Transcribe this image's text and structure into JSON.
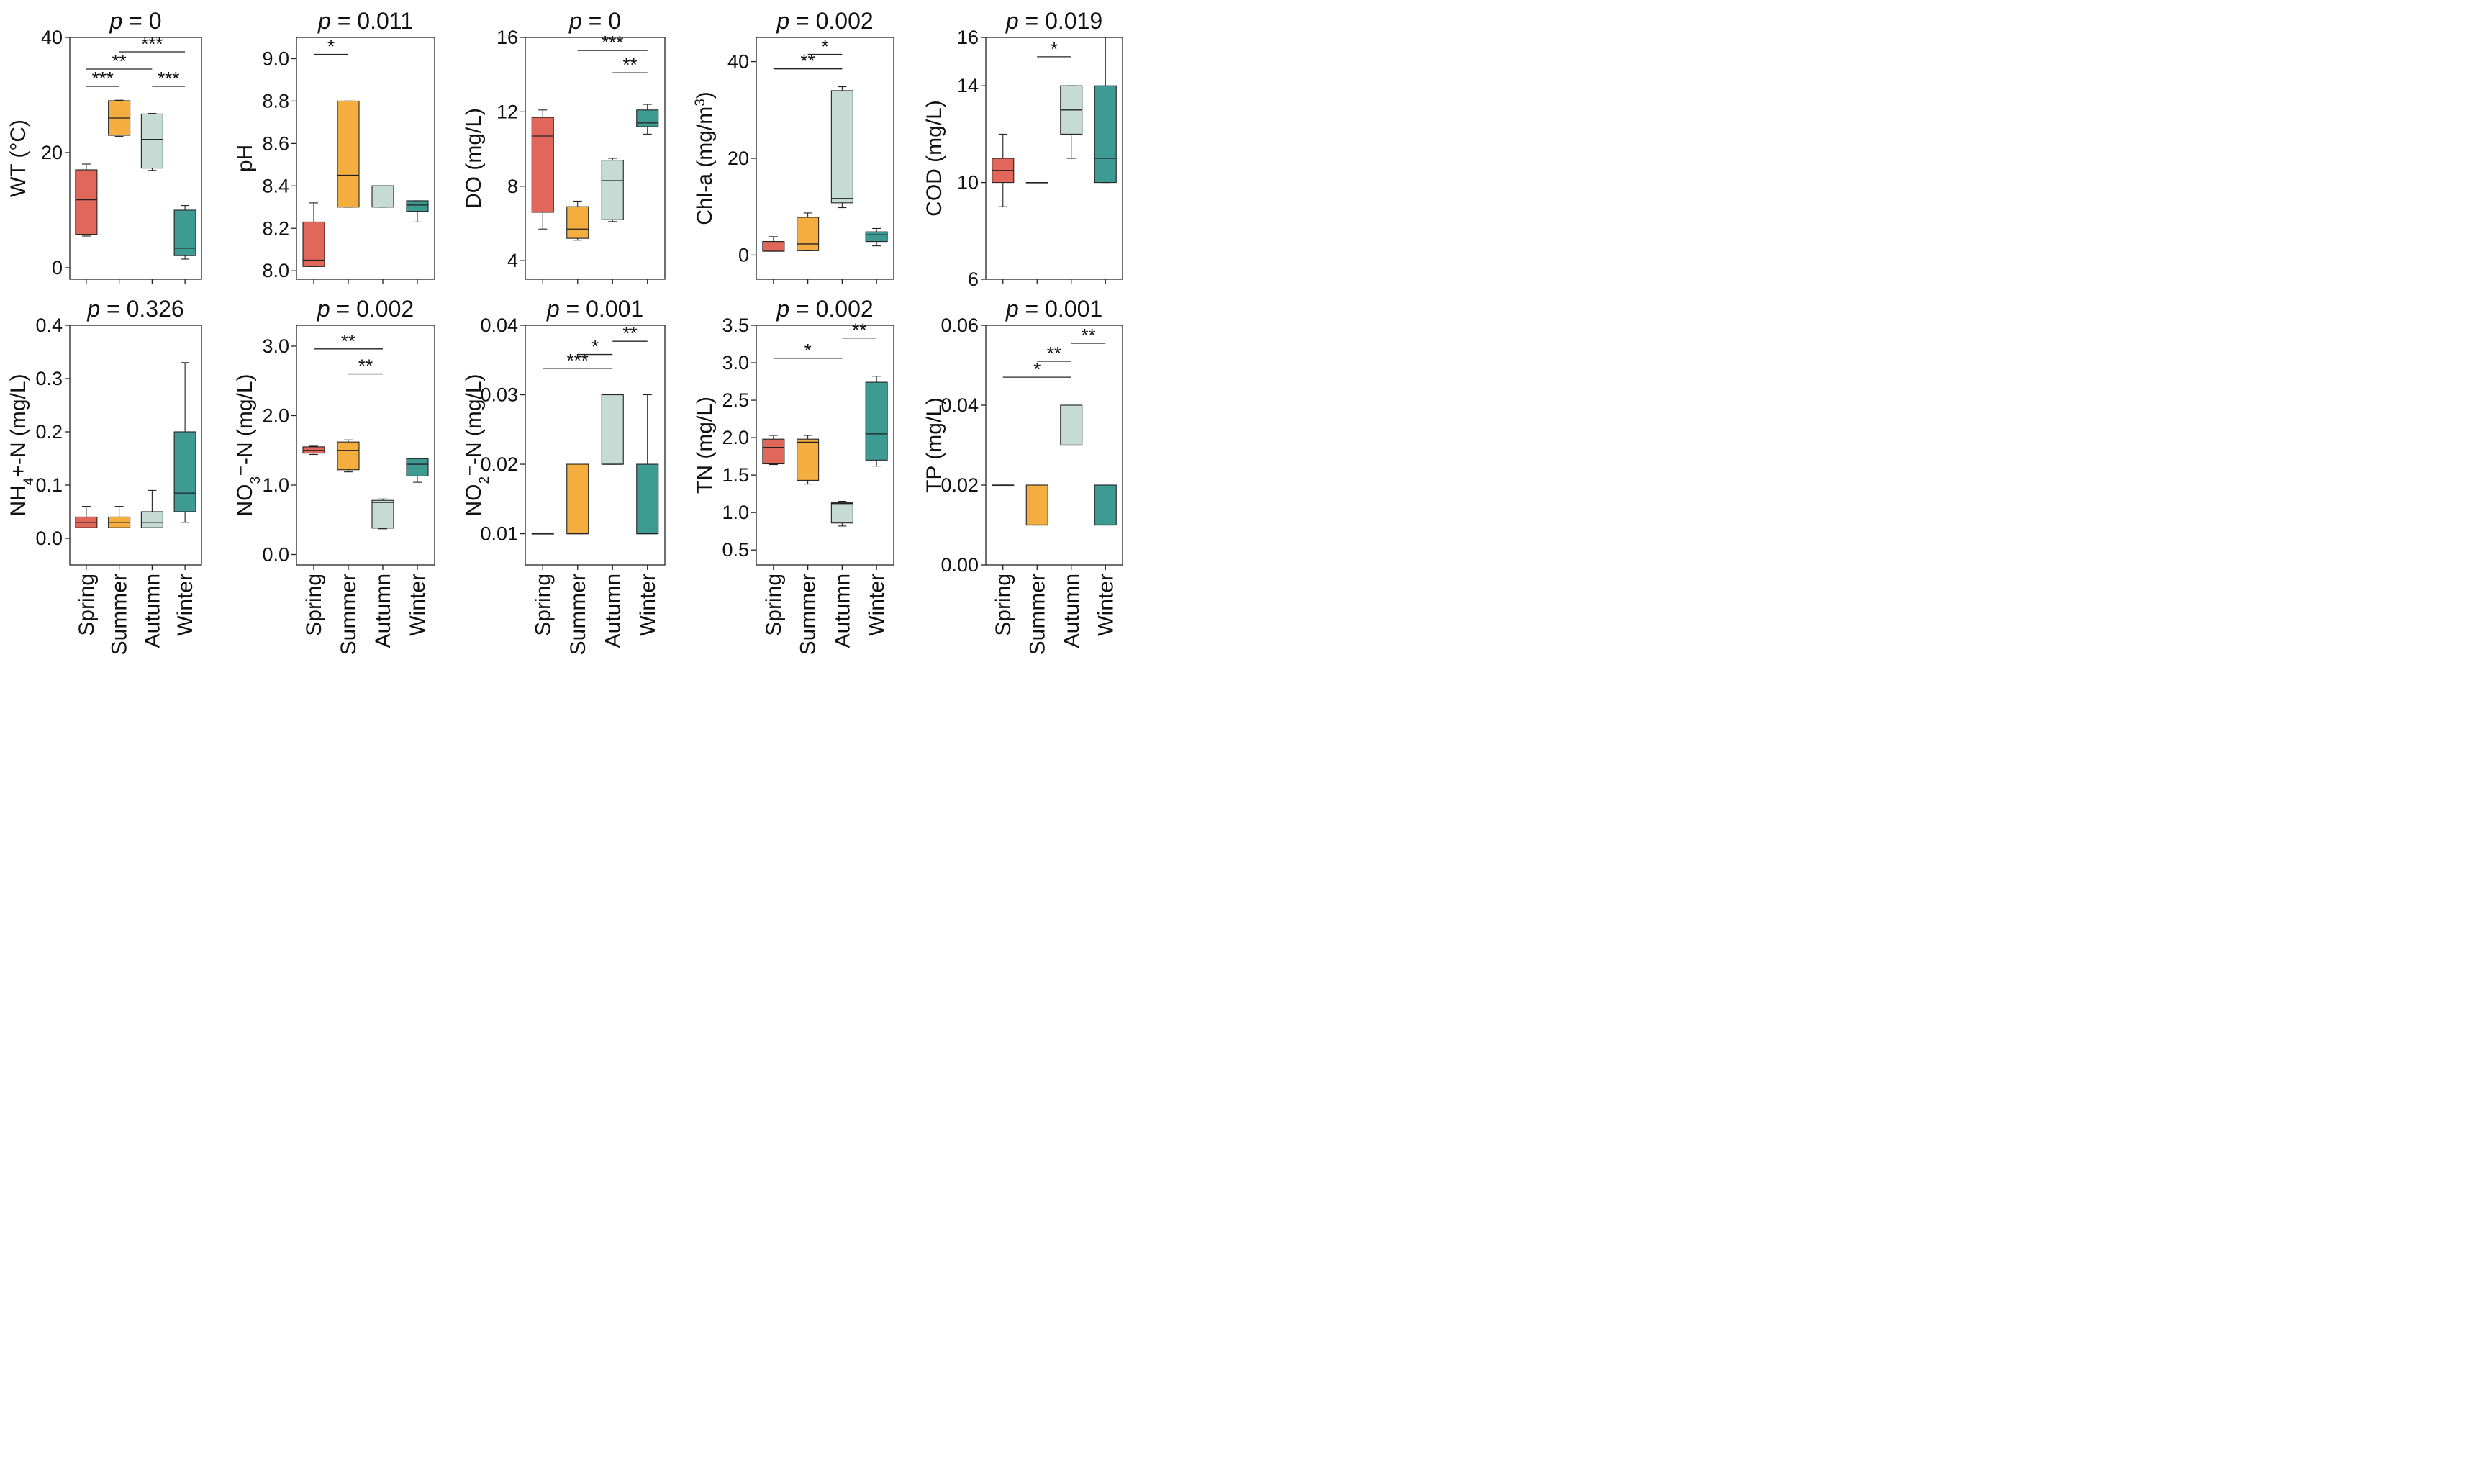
{
  "colors": {
    "Spring": "#E0675A",
    "Summer": "#F3AE3F",
    "Autumn": "#C5DBD4",
    "Winter": "#3E9B94"
  },
  "chart_data": [
    {
      "type": "box",
      "title_prefix": "p",
      "title_value": " = 0",
      "ylabel": [
        {
          "t": "WT ("
        },
        {
          "t": "°C"
        },
        {
          "t": ")"
        }
      ],
      "ylim": [
        -2,
        40
      ],
      "ticks": [
        0,
        20,
        40
      ],
      "tick_labels": [
        "0",
        "20",
        "40"
      ],
      "categories": [
        "Spring",
        "Summer",
        "Autumn",
        "Winter"
      ],
      "show_categories": false,
      "boxes": [
        {
          "cat": "Spring",
          "min": 5.5,
          "q1": 5.8,
          "median": 11.8,
          "q3": 17.0,
          "max": 18.0
        },
        {
          "cat": "Summer",
          "min": 22.8,
          "q1": 23.0,
          "median": 26.0,
          "q3": 29.0,
          "max": 29.1
        },
        {
          "cat": "Autumn",
          "min": 16.9,
          "q1": 17.3,
          "median": 22.3,
          "q3": 26.7,
          "max": 26.8
        },
        {
          "cat": "Winter",
          "min": 1.5,
          "q1": 2.1,
          "median": 3.4,
          "q3": 10.0,
          "max": 10.8
        }
      ],
      "sig": [
        {
          "from": 0,
          "to": 1,
          "label": "***",
          "y": 31.5
        },
        {
          "from": 0,
          "to": 2,
          "label": "**",
          "y": 34.5
        },
        {
          "from": 1,
          "to": 3,
          "label": "***",
          "y": 37.5
        },
        {
          "from": 2,
          "to": 3,
          "label": "***",
          "y": 31.5
        }
      ]
    },
    {
      "type": "box",
      "title_prefix": "p",
      "title_value": " = 0.011",
      "ylabel": [
        {
          "t": "pH"
        }
      ],
      "ylim": [
        7.96,
        9.1
      ],
      "ticks": [
        8.0,
        8.2,
        8.4,
        8.6,
        8.8,
        9.0
      ],
      "tick_labels": [
        "8.0",
        "8.2",
        "8.4",
        "8.6",
        "8.8",
        "9.0"
      ],
      "categories": [
        "Spring",
        "Summer",
        "Autumn",
        "Winter"
      ],
      "show_categories": false,
      "boxes": [
        {
          "cat": "Spring",
          "min": 8.02,
          "q1": 8.02,
          "median": 8.05,
          "q3": 8.23,
          "max": 8.32
        },
        {
          "cat": "Summer",
          "min": 8.3,
          "q1": 8.3,
          "median": 8.45,
          "q3": 8.8,
          "max": 8.8
        },
        {
          "cat": "Autumn",
          "min": 8.3,
          "q1": 8.3,
          "median": 8.4,
          "q3": 8.4,
          "max": 8.4
        },
        {
          "cat": "Winter",
          "min": 8.23,
          "q1": 8.28,
          "median": 8.31,
          "q3": 8.33,
          "max": 8.33
        }
      ],
      "sig": [
        {
          "from": 0,
          "to": 1,
          "label": "*",
          "y": 9.02
        }
      ]
    },
    {
      "type": "box",
      "title_prefix": "p",
      "title_value": " = 0",
      "ylabel": [
        {
          "t": "DO (mg/L)"
        }
      ],
      "ylim": [
        3.0,
        16
      ],
      "ticks": [
        4,
        8,
        12,
        16
      ],
      "tick_labels": [
        "4",
        "8",
        "12",
        "16"
      ],
      "categories": [
        "Spring",
        "Summer",
        "Autumn",
        "Winter"
      ],
      "show_categories": false,
      "boxes": [
        {
          "cat": "Spring",
          "min": 5.7,
          "q1": 6.6,
          "median": 10.7,
          "q3": 11.7,
          "max": 12.1
        },
        {
          "cat": "Summer",
          "min": 5.1,
          "q1": 5.2,
          "median": 5.7,
          "q3": 6.9,
          "max": 7.2
        },
        {
          "cat": "Autumn",
          "min": 6.1,
          "q1": 6.2,
          "median": 8.3,
          "q3": 9.4,
          "max": 9.5
        },
        {
          "cat": "Winter",
          "min": 10.8,
          "q1": 11.2,
          "median": 11.4,
          "q3": 12.1,
          "max": 12.4
        }
      ],
      "sig": [
        {
          "from": 1,
          "to": 3,
          "label": "***",
          "y": 15.3
        },
        {
          "from": 2,
          "to": 3,
          "label": "**",
          "y": 14.1
        }
      ]
    },
    {
      "type": "box",
      "title_prefix": "p",
      "title_value": " = 0.002",
      "ylabel": [
        {
          "t": "Chl-a (mg/m"
        },
        {
          "t": "3",
          "sup": true
        },
        {
          "t": ")"
        }
      ],
      "ylim": [
        -5,
        45
      ],
      "ticks": [
        0,
        20,
        40
      ],
      "tick_labels": [
        "0",
        "20",
        "40"
      ],
      "categories": [
        "Spring",
        "Summer",
        "Autumn",
        "Winter"
      ],
      "show_categories": false,
      "boxes": [
        {
          "cat": "Spring",
          "min": 0.8,
          "q1": 0.8,
          "median": 0.8,
          "q3": 2.8,
          "max": 3.8
        },
        {
          "cat": "Summer",
          "min": 0.9,
          "q1": 0.9,
          "median": 2.3,
          "q3": 7.8,
          "max": 8.7
        },
        {
          "cat": "Autumn",
          "min": 9.8,
          "q1": 10.8,
          "median": 11.7,
          "q3": 34.0,
          "max": 34.8
        },
        {
          "cat": "Winter",
          "min": 1.9,
          "q1": 2.8,
          "median": 4.2,
          "q3": 4.8,
          "max": 5.5
        }
      ],
      "sig": [
        {
          "from": 0,
          "to": 2,
          "label": "**",
          "y": 38.5
        },
        {
          "from": 1,
          "to": 2,
          "label": "*",
          "y": 41.5
        }
      ]
    },
    {
      "type": "box",
      "title_prefix": "p",
      "title_value": " = 0.019",
      "ylabel": [
        {
          "t": "COD (mg/L)"
        }
      ],
      "ylim": [
        6,
        16
      ],
      "ticks": [
        6,
        10,
        14,
        16
      ],
      "tick_labels": [
        "6",
        "10",
        "14",
        "16"
      ],
      "categories": [
        "Spring",
        "Summer",
        "Autumn",
        "Winter"
      ],
      "show_categories": false,
      "boxes": [
        {
          "cat": "Spring",
          "min": 9.0,
          "q1": 10.0,
          "median": 10.5,
          "q3": 11.0,
          "max": 12.0
        },
        {
          "cat": "Summer",
          "min": 10.0,
          "q1": 10.0,
          "median": 10.0,
          "q3": 10.0,
          "max": 10.0
        },
        {
          "cat": "Autumn",
          "min": 11.0,
          "q1": 12.0,
          "median": 13.0,
          "q3": 14.0,
          "max": 14.0
        },
        {
          "cat": "Winter",
          "min": 10.0,
          "q1": 10.0,
          "median": 11.0,
          "q3": 14.0,
          "max": 16.0
        }
      ],
      "sig": [
        {
          "from": 1,
          "to": 2,
          "label": "*",
          "y": 15.2
        }
      ]
    },
    {
      "type": "box",
      "title_prefix": "p",
      "title_value": " = 0.326",
      "ylabel": [
        {
          "t": "NH"
        },
        {
          "t": "4",
          "sub": true
        },
        {
          "t": "+-N (mg/L)"
        }
      ],
      "ylim": [
        -0.05,
        0.4
      ],
      "ticks": [
        0.0,
        0.1,
        0.2,
        0.3,
        0.4
      ],
      "tick_labels": [
        "0.0",
        "0.1",
        "0.2",
        "0.3",
        "0.4"
      ],
      "categories": [
        "Spring",
        "Summer",
        "Autumn",
        "Winter"
      ],
      "show_categories": true,
      "boxes": [
        {
          "cat": "Spring",
          "min": 0.02,
          "q1": 0.02,
          "median": 0.03,
          "q3": 0.04,
          "max": 0.06
        },
        {
          "cat": "Summer",
          "min": 0.02,
          "q1": 0.02,
          "median": 0.03,
          "q3": 0.04,
          "max": 0.06
        },
        {
          "cat": "Autumn",
          "min": 0.02,
          "q1": 0.02,
          "median": 0.03,
          "q3": 0.05,
          "max": 0.09
        },
        {
          "cat": "Winter",
          "min": 0.03,
          "q1": 0.05,
          "median": 0.085,
          "q3": 0.2,
          "max": 0.33
        }
      ],
      "sig": []
    },
    {
      "type": "box",
      "title_prefix": "p",
      "title_value": " = 0.002",
      "ylabel": [
        {
          "t": "NO"
        },
        {
          "t": "3",
          "sub": true
        },
        {
          "t": "⁻-N (mg/L)"
        }
      ],
      "ylim": [
        -0.15,
        3.3
      ],
      "ticks": [
        0.0,
        1.0,
        2.0,
        3.0
      ],
      "tick_labels": [
        "0.0",
        "1.0",
        "2.0",
        "3.0"
      ],
      "categories": [
        "Spring",
        "Summer",
        "Autumn",
        "Winter"
      ],
      "show_categories": true,
      "boxes": [
        {
          "cat": "Spring",
          "min": 1.44,
          "q1": 1.46,
          "median": 1.5,
          "q3": 1.55,
          "max": 1.56
        },
        {
          "cat": "Summer",
          "min": 1.19,
          "q1": 1.22,
          "median": 1.5,
          "q3": 1.62,
          "max": 1.65
        },
        {
          "cat": "Autumn",
          "min": 0.37,
          "q1": 0.38,
          "median": 0.75,
          "q3": 0.78,
          "max": 0.8
        },
        {
          "cat": "Winter",
          "min": 1.04,
          "q1": 1.13,
          "median": 1.3,
          "q3": 1.38,
          "max": 1.38
        }
      ],
      "sig": [
        {
          "from": 0,
          "to": 2,
          "label": "**",
          "y": 2.96
        },
        {
          "from": 1,
          "to": 2,
          "label": "**",
          "y": 2.6
        }
      ]
    },
    {
      "type": "box",
      "title_prefix": "p",
      "title_value": " = 0.001",
      "ylabel": [
        {
          "t": "NO"
        },
        {
          "t": "2",
          "sub": true
        },
        {
          "t": "⁻-N (mg/L)"
        }
      ],
      "ylim": [
        0.0055,
        0.04
      ],
      "ticks": [
        0.01,
        0.02,
        0.03,
        0.04
      ],
      "tick_labels": [
        "0.01",
        "0.02",
        "0.03",
        "0.04"
      ],
      "categories": [
        "Spring",
        "Summer",
        "Autumn",
        "Winter"
      ],
      "show_categories": true,
      "boxes": [
        {
          "cat": "Spring",
          "min": 0.01,
          "q1": 0.01,
          "median": 0.01,
          "q3": 0.01,
          "max": 0.01
        },
        {
          "cat": "Summer",
          "min": 0.01,
          "q1": 0.01,
          "median": 0.01,
          "q3": 0.02,
          "max": 0.02
        },
        {
          "cat": "Autumn",
          "min": 0.02,
          "q1": 0.02,
          "median": 0.02,
          "q3": 0.03,
          "max": 0.03
        },
        {
          "cat": "Winter",
          "min": 0.01,
          "q1": 0.01,
          "median": 0.01,
          "q3": 0.02,
          "max": 0.03
        }
      ],
      "sig": [
        {
          "from": 0,
          "to": 2,
          "label": "***",
          "y": 0.0338
        },
        {
          "from": 1,
          "to": 2,
          "label": "*",
          "y": 0.0358
        },
        {
          "from": 2,
          "to": 3,
          "label": "**",
          "y": 0.0377
        }
      ]
    },
    {
      "type": "box",
      "title_prefix": "p",
      "title_value": " = 0.002",
      "ylabel": [
        {
          "t": "TN (mg/L)"
        }
      ],
      "ylim": [
        0.3,
        3.5
      ],
      "ticks": [
        0.5,
        1.0,
        1.5,
        2.0,
        2.5,
        3.0,
        3.5
      ],
      "tick_labels": [
        "0.5",
        "1.0",
        "1.5",
        "2.0",
        "2.5",
        "3.0",
        "3.5"
      ],
      "categories": [
        "Spring",
        "Summer",
        "Autumn",
        "Winter"
      ],
      "show_categories": true,
      "boxes": [
        {
          "cat": "Spring",
          "min": 1.64,
          "q1": 1.65,
          "median": 1.87,
          "q3": 1.98,
          "max": 2.03
        },
        {
          "cat": "Summer",
          "min": 1.38,
          "q1": 1.43,
          "median": 1.94,
          "q3": 1.98,
          "max": 2.03
        },
        {
          "cat": "Autumn",
          "min": 0.82,
          "q1": 0.86,
          "median": 1.12,
          "q3": 1.13,
          "max": 1.15
        },
        {
          "cat": "Winter",
          "min": 1.62,
          "q1": 1.7,
          "median": 2.05,
          "q3": 2.74,
          "max": 2.82
        }
      ],
      "sig": [
        {
          "from": 0,
          "to": 2,
          "label": "*",
          "y": 3.06
        },
        {
          "from": 2,
          "to": 3,
          "label": "**",
          "y": 3.33
        }
      ]
    },
    {
      "type": "box",
      "title_prefix": "p",
      "title_value": " = 0.001",
      "ylabel": [
        {
          "t": "TP (mg/L)"
        }
      ],
      "ylim": [
        0.0,
        0.06
      ],
      "ticks": [
        0.0,
        0.02,
        0.04,
        0.06
      ],
      "tick_labels": [
        "0.00",
        "0.02",
        "0.04",
        "0.06"
      ],
      "categories": [
        "Spring",
        "Summer",
        "Autumn",
        "Winter"
      ],
      "show_categories": true,
      "boxes": [
        {
          "cat": "Spring",
          "min": 0.02,
          "q1": 0.02,
          "median": 0.02,
          "q3": 0.02,
          "max": 0.02
        },
        {
          "cat": "Summer",
          "min": 0.01,
          "q1": 0.01,
          "median": 0.01,
          "q3": 0.02,
          "max": 0.02
        },
        {
          "cat": "Autumn",
          "min": 0.03,
          "q1": 0.03,
          "median": 0.03,
          "q3": 0.04,
          "max": 0.04
        },
        {
          "cat": "Winter",
          "min": 0.01,
          "q1": 0.01,
          "median": 0.01,
          "q3": 0.02,
          "max": 0.02
        }
      ],
      "sig": [
        {
          "from": 0,
          "to": 2,
          "label": "*",
          "y": 0.047
        },
        {
          "from": 1,
          "to": 2,
          "label": "**",
          "y": 0.051
        },
        {
          "from": 2,
          "to": 3,
          "label": "**",
          "y": 0.0555
        }
      ]
    }
  ]
}
